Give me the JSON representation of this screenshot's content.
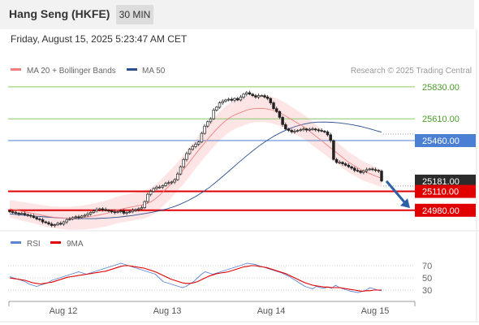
{
  "header": {
    "title": "Hang Seng (HKFE)",
    "interval": "30 MIN",
    "timestamp": "Friday, August 15, 2025 5:23:47 AM CET"
  },
  "legend": {
    "ma20_label": "MA 20 + Bollinger Bands",
    "ma50_label": "MA 50",
    "ma20_color": "#f08080",
    "ma50_color": "#2e4f8f",
    "bands_color": "#fddcdc",
    "credit": "Research © 2025 Trading Central"
  },
  "colors": {
    "resistance": "#8cc96a",
    "pivot": "#4a7fd4",
    "support": "#e00000",
    "last_price": "#2b2b2b",
    "candle": "#222222",
    "arrow": "#2e5fa8",
    "rsi": "#5b84d6",
    "rsi_ma": "#e00000"
  },
  "chart_data": [
    {
      "type": "candlestick",
      "title": "Hang Seng (HKFE)",
      "interval": "30 MIN",
      "ylim": [
        24850,
        25880
      ],
      "x_ticks": [
        "Aug 12",
        "Aug 13",
        "Aug 14",
        "Aug 15"
      ],
      "levels": [
        {
          "label": "25830.00",
          "value": 25830,
          "kind": "resistance"
        },
        {
          "label": "25610.00",
          "value": 25610,
          "kind": "resistance"
        },
        {
          "label": "25460.00",
          "value": 25460,
          "kind": "pivot"
        },
        {
          "label": "25181.00",
          "value": 25181,
          "kind": "last"
        },
        {
          "label": "25110.00",
          "value": 25110,
          "kind": "support"
        },
        {
          "label": "24980.00",
          "value": 24980,
          "kind": "support"
        }
      ],
      "close": [
        24970,
        24965,
        24960,
        24955,
        24958,
        24950,
        24945,
        24940,
        24930,
        24920,
        24915,
        24900,
        24895,
        24885,
        24875,
        24880,
        24890,
        24885,
        24900,
        24915,
        24920,
        24930,
        24935,
        24930,
        24940,
        24945,
        24955,
        24965,
        24975,
        24985,
        24990,
        24985,
        24980,
        24975,
        24970,
        24965,
        24970,
        24975,
        24960,
        24965,
        24970,
        24980,
        24985,
        24990,
        24998,
        25040,
        25090,
        25110,
        25130,
        25140,
        25140,
        25150,
        25165,
        25170,
        25175,
        25190,
        25230,
        25280,
        25330,
        25370,
        25400,
        25420,
        25435,
        25450,
        25510,
        25560,
        25590,
        25610,
        25670,
        25690,
        25720,
        25730,
        25740,
        25745,
        25738,
        25750,
        25740,
        25760,
        25780,
        25790,
        25780,
        25770,
        25760,
        25770,
        25770,
        25760,
        25750,
        25720,
        25680,
        25660,
        25620,
        25570,
        25540,
        25530,
        25520,
        25525,
        25530,
        25535,
        25540,
        25532,
        25538,
        25540,
        25534,
        25530,
        25525,
        25520,
        25500,
        25460,
        25330,
        25310,
        25310,
        25300,
        25290,
        25280,
        25270,
        25255,
        25250,
        25240,
        25250,
        25260,
        25265,
        25260,
        25255,
        25250,
        25181
      ],
      "ma20": [
        24990,
        24985,
        24980,
        24975,
        24970,
        24965,
        24960,
        24955,
        24950,
        24945,
        24940,
        24935,
        24932,
        24930,
        24928,
        24926,
        24925,
        24925,
        24926,
        24928,
        24930,
        24933,
        24936,
        24940,
        24945,
        24950,
        24955,
        24962,
        24970,
        24978,
        24985,
        24990,
        24995,
        25000,
        25005,
        25010,
        25015,
        25020,
        25030,
        25042,
        25060,
        25082,
        25105,
        25130,
        25155,
        25182,
        25210,
        25240,
        25270,
        25302,
        25335,
        25368,
        25400,
        25430,
        25460,
        25490,
        25518,
        25545,
        25570,
        25592,
        25612,
        25628,
        25640,
        25650,
        25660,
        25670,
        25676,
        25680,
        25682,
        25682,
        25680,
        25676,
        25670,
        25662,
        25652,
        25640,
        25625,
        25610,
        25595,
        25580,
        25565,
        25548,
        25530,
        25510,
        25490,
        25470,
        25450,
        25430,
        25410,
        25390,
        25370,
        25350,
        25330,
        25310,
        25295,
        25280,
        25265,
        25250,
        25240,
        25230,
        25220,
        25210,
        25200
      ],
      "ma50": [
        24955,
        24950,
        24946,
        24942,
        24938,
        24934,
        24930,
        24927,
        24925,
        24923,
        24922,
        24922,
        24923,
        24925,
        24928,
        24932,
        24937,
        24943,
        24950,
        24958,
        24967,
        24977,
        24990,
        25005,
        25025,
        25048,
        25075,
        25105,
        25140,
        25180,
        25222,
        25265,
        25308,
        25350,
        25390,
        25428,
        25462,
        25492,
        25518,
        25540,
        25558,
        25572,
        25582,
        25587,
        25588,
        25586,
        25582,
        25576,
        25568,
        25558,
        25546,
        25532,
        25518
      ]
    },
    {
      "type": "line",
      "legend": [
        "RSI",
        "9MA"
      ],
      "y_ticks": [
        70,
        50,
        30
      ],
      "ylim": [
        10,
        90
      ],
      "rsi": [
        52,
        50,
        48,
        46,
        44,
        40,
        38,
        36,
        38,
        40,
        42,
        46,
        48,
        50,
        52,
        54,
        56,
        58,
        60,
        58,
        56,
        58,
        60,
        62,
        64,
        66,
        68,
        70,
        72,
        74,
        72,
        70,
        68,
        66,
        64,
        62,
        60,
        58,
        56,
        50,
        44,
        42,
        40,
        38,
        36,
        34,
        36,
        40,
        44,
        50,
        56,
        60,
        58,
        56,
        58,
        60,
        62,
        64,
        66,
        68,
        70,
        72,
        74,
        73,
        72,
        70,
        68,
        66,
        64,
        62,
        60,
        58,
        55,
        52,
        48,
        44,
        40,
        36,
        34,
        32,
        36,
        34,
        33,
        35,
        33,
        38,
        34,
        32,
        30,
        28,
        27,
        26,
        28,
        30,
        34,
        32,
        30,
        29
      ],
      "rsi_ma": [
        50,
        49,
        48,
        47,
        46,
        44,
        42,
        41,
        40,
        41,
        42,
        43,
        45,
        47,
        49,
        51,
        52,
        53,
        54,
        55,
        56,
        57,
        58,
        59,
        60,
        61,
        63,
        65,
        67,
        69,
        70,
        70,
        69,
        68,
        67,
        66,
        64,
        62,
        60,
        57,
        54,
        51,
        48,
        46,
        44,
        42,
        41,
        41,
        42,
        44,
        47,
        50,
        53,
        55,
        57,
        58,
        59,
        60,
        62,
        64,
        66,
        68,
        69,
        70,
        70,
        69,
        68,
        67,
        65,
        63,
        61,
        59,
        57,
        54,
        51,
        48,
        45,
        42,
        40,
        38,
        37,
        36,
        35,
        35,
        34,
        34,
        34,
        33,
        32,
        31,
        30,
        29,
        28,
        29,
        29,
        30,
        30,
        30
      ]
    }
  ]
}
